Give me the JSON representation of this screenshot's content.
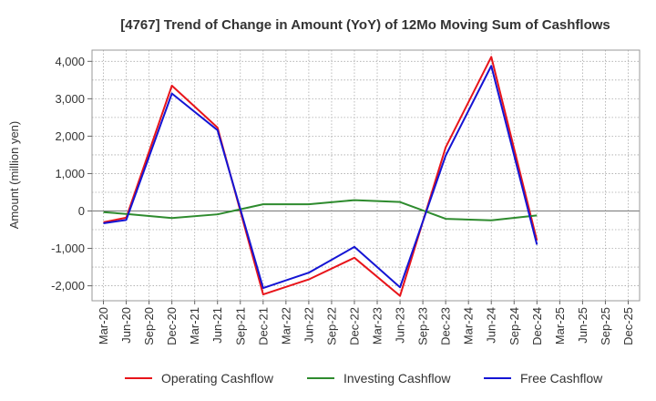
{
  "chart_data": {
    "type": "line",
    "title": "[4767]  Trend of Change in Amount (YoY) of 12Mo Moving Sum of Cashflows",
    "xlabel": "",
    "ylabel": "Amount (million yen)",
    "ylim": [
      -2400,
      4300
    ],
    "yticks": [
      -2000,
      -1000,
      0,
      1000,
      2000,
      3000,
      4000
    ],
    "ytick_labels": [
      "-2,000",
      "-1,000",
      "0",
      "1,000",
      "2,000",
      "3,000",
      "4,000"
    ],
    "categories": [
      "Mar-20",
      "Jun-20",
      "Sep-20",
      "Dec-20",
      "Mar-21",
      "Jun-21",
      "Sep-21",
      "Dec-21",
      "Mar-22",
      "Jun-22",
      "Sep-22",
      "Dec-22",
      "Mar-23",
      "Jun-23",
      "Sep-23",
      "Dec-23",
      "Mar-24",
      "Jun-24",
      "Sep-24",
      "Dec-24",
      "Mar-25",
      "Jun-25",
      "Sep-25",
      "Dec-25"
    ],
    "grid": true,
    "legend_position": "bottom",
    "series": [
      {
        "name": "Operating Cashflow",
        "color": "#e8141a",
        "values": [
          -300,
          -180,
          null,
          3350,
          null,
          2230,
          null,
          -2230,
          null,
          -1830,
          null,
          -1250,
          null,
          -2270,
          null,
          1700,
          null,
          4120,
          null,
          -790,
          null,
          null,
          null,
          null
        ]
      },
      {
        "name": "Investing Cashflow",
        "color": "#2e8b2e",
        "values": [
          -30,
          -80,
          null,
          -190,
          null,
          -90,
          null,
          180,
          null,
          180,
          null,
          290,
          null,
          240,
          null,
          -210,
          null,
          -250,
          null,
          -120,
          null,
          null,
          null,
          null
        ]
      },
      {
        "name": "Free Cashflow",
        "color": "#1414d4",
        "values": [
          -330,
          -240,
          null,
          3140,
          null,
          2160,
          null,
          -2060,
          null,
          -1650,
          null,
          -960,
          null,
          -2040,
          null,
          1480,
          null,
          3880,
          null,
          -900,
          null,
          null,
          null,
          null
        ]
      }
    ]
  }
}
